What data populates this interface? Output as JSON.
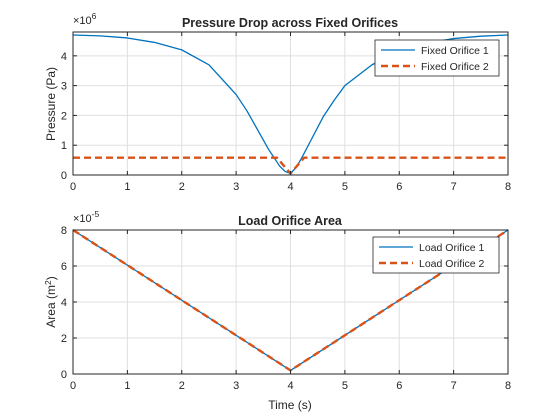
{
  "colors": {
    "series1": "#0072BD",
    "series2": "#D95319",
    "axis": "#262626",
    "grid": "#dfdfdf",
    "background": "#ffffff"
  },
  "chart_data": [
    {
      "type": "line",
      "title": "Pressure Drop across Fixed Orifices",
      "xlabel": "",
      "ylabel": "Pressure (Pa)",
      "y_exponent_base": "×10",
      "y_exponent_power": "6",
      "xlim": [
        0,
        8
      ],
      "ylim": [
        0,
        4.8
      ],
      "xticks": [
        0,
        1,
        2,
        3,
        4,
        5,
        6,
        7,
        8
      ],
      "yticks": [
        0,
        1,
        2,
        3,
        4
      ],
      "grid": true,
      "legend_position": "top-right",
      "series": [
        {
          "name": "Fixed Orifice 1",
          "style": "solid",
          "x": [
            0,
            0.5,
            1,
            1.5,
            2,
            2.5,
            3,
            3.2,
            3.4,
            3.6,
            3.8,
            3.9,
            4.0,
            4.1,
            4.2,
            4.4,
            4.6,
            4.8,
            5,
            5.5,
            6,
            6.5,
            7,
            7.5,
            8
          ],
          "y": [
            4.7,
            4.67,
            4.6,
            4.45,
            4.2,
            3.7,
            2.7,
            2.15,
            1.5,
            0.85,
            0.3,
            0.12,
            0.05,
            0.25,
            0.55,
            1.25,
            1.95,
            2.5,
            3.0,
            3.7,
            4.15,
            4.42,
            4.58,
            4.66,
            4.7
          ]
        },
        {
          "name": "Fixed Orifice 2",
          "style": "dashed",
          "x": [
            0,
            3.75,
            4.0,
            4.25,
            8
          ],
          "y": [
            0.58,
            0.58,
            0.05,
            0.58,
            0.58
          ]
        }
      ]
    },
    {
      "type": "line",
      "title": "Load Orifice Area",
      "xlabel": "Time (s)",
      "ylabel_main": "Area (m",
      "ylabel_sup": "2",
      "ylabel_end": ")",
      "y_exponent_base": "×10",
      "y_exponent_power": "-5",
      "xlim": [
        0,
        8
      ],
      "ylim": [
        0,
        8
      ],
      "xticks": [
        0,
        1,
        2,
        3,
        4,
        5,
        6,
        7,
        8
      ],
      "yticks": [
        0,
        2,
        4,
        6,
        8
      ],
      "grid": true,
      "legend_position": "top-right",
      "series": [
        {
          "name": "Load Orifice 1",
          "style": "solid",
          "x": [
            0,
            4,
            8
          ],
          "y": [
            8,
            0.2,
            8
          ]
        },
        {
          "name": "Load Orifice 2",
          "style": "dashed",
          "x": [
            0,
            4,
            8
          ],
          "y": [
            8,
            0.2,
            8
          ]
        }
      ]
    }
  ]
}
